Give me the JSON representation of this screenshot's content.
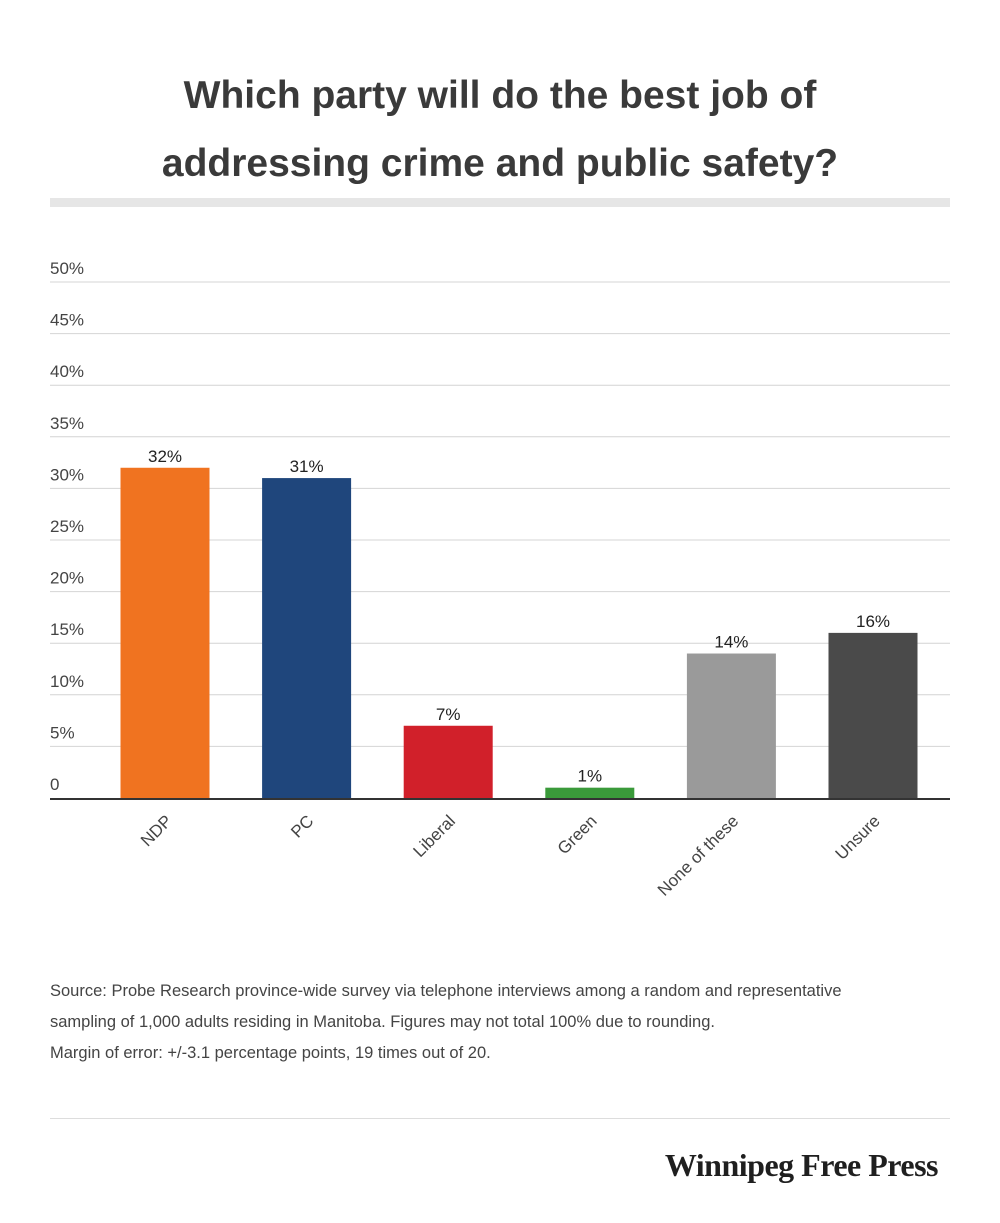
{
  "header": {
    "title_line1": "Which party will do the best job of",
    "title_line2": "addressing crime and public safety?"
  },
  "chart_data": {
    "type": "bar",
    "title": "Which party will do the best job of addressing crime and public safety?",
    "categories": [
      "NDP",
      "PC",
      "Liberal",
      "Green",
      "None of these",
      "Unsure"
    ],
    "values": [
      32,
      31,
      7,
      1,
      14,
      16
    ],
    "value_labels": [
      "32%",
      "31%",
      "7%",
      "1%",
      "14%",
      "16%"
    ],
    "colors": [
      "#f07320",
      "#1f467c",
      "#d1202a",
      "#3a9a3a",
      "#9a9a9a",
      "#4a4a4a"
    ],
    "ylim": [
      0,
      50
    ],
    "yticks": [
      0,
      5,
      10,
      15,
      20,
      25,
      30,
      35,
      40,
      45,
      50
    ],
    "ytick_labels": [
      "0",
      "5%",
      "10%",
      "15%",
      "20%",
      "25%",
      "30%",
      "35%",
      "40%",
      "45%",
      "50%"
    ],
    "grid": true,
    "legend": "none"
  },
  "footer": {
    "source_line1": "Source:  Probe Research province-wide survey via telephone interviews among a random and representative",
    "source_line2": "sampling of 1,000 adults residing in Manitoba. Figures may not total 100% due to rounding.",
    "source_line3": "Margin of error: +/-3.1 percentage points, 19 times out of 20.",
    "brand": "Winnipeg Free Press"
  }
}
